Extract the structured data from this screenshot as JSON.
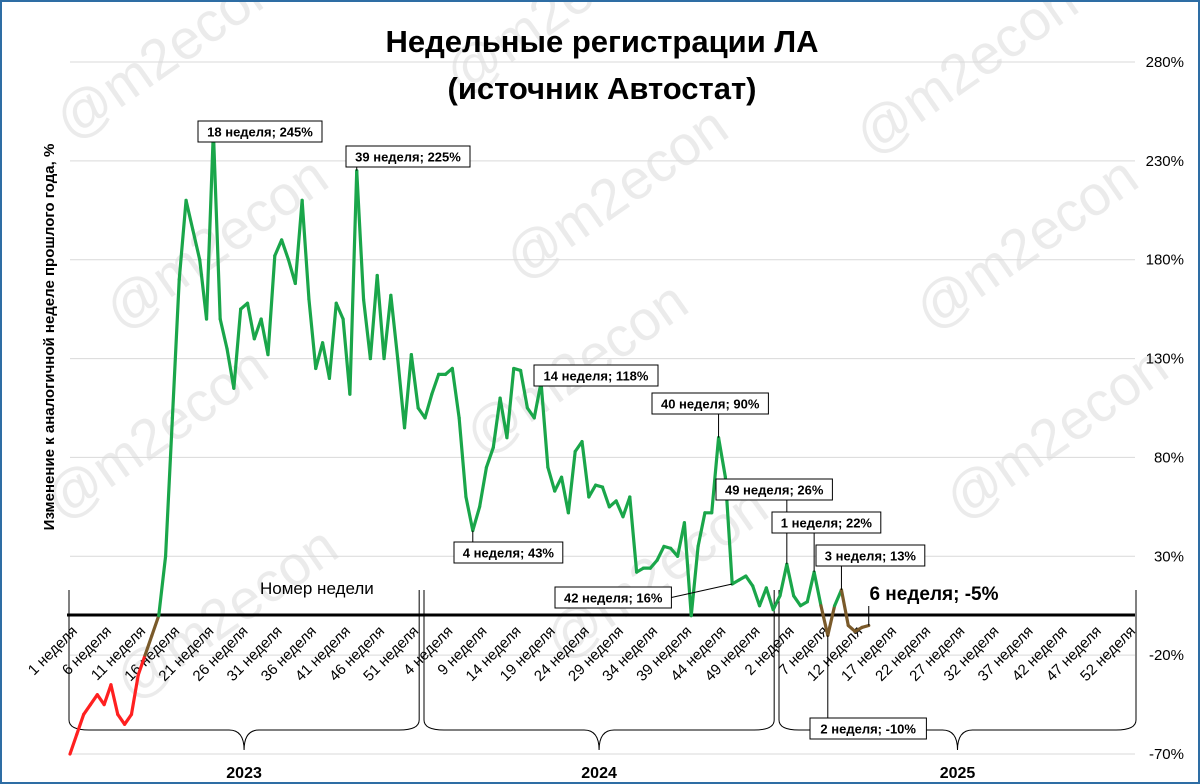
{
  "chart_data": {
    "type": "line",
    "title": [
      "Недельные регистрации ЛА",
      "(источник Автостат)"
    ],
    "ylabel": "Изменение к аналогичной  неделе прошлого года, %",
    "xlabel": "Номер недели",
    "ylim": [
      -70,
      280
    ],
    "yticks": [
      "280%",
      "230%",
      "180%",
      "130%",
      "80%",
      "30%",
      "-20%",
      "-70%"
    ],
    "y_tick_values": [
      280,
      230,
      180,
      130,
      80,
      30,
      -20,
      -70
    ],
    "xtick_labels": [
      "1 неделя",
      "6 неделя",
      "11 неделя",
      "16 неделя",
      "21 неделя",
      "26 неделя",
      "31 неделя",
      "36 неделя",
      "41 неделя",
      "46 неделя",
      "51 неделя",
      "4 неделя",
      "9 неделя",
      "14 неделя",
      "19 неделя",
      "24 неделя",
      "29 неделя",
      "34 неделя",
      "39 неделя",
      "44 неделя",
      "49 неделя",
      "2 неделя",
      "7 неделя",
      "12 неделя",
      "17 неделя",
      "22 неделя",
      "27 неделя",
      "32 неделя",
      "37 неделя",
      "42 неделя",
      "47 неделя",
      "52 неделя"
    ],
    "xtick_week_index": [
      0,
      5,
      10,
      15,
      20,
      25,
      30,
      35,
      40,
      45,
      50,
      55,
      60,
      65,
      70,
      75,
      80,
      85,
      90,
      95,
      100,
      105,
      110,
      115,
      120,
      125,
      130,
      135,
      140,
      145,
      150,
      155
    ],
    "total_weeks": 157,
    "years": [
      {
        "label": "2023",
        "start": 0,
        "end": 51
      },
      {
        "label": "2024",
        "start": 52,
        "end": 103
      },
      {
        "label": "2025",
        "start": 104,
        "end": 156
      }
    ],
    "values": [
      -70,
      -60,
      -50,
      -45,
      -40,
      -45,
      -35,
      -50,
      -55,
      -50,
      -30,
      -20,
      -10,
      0,
      30,
      100,
      170,
      210,
      195,
      180,
      150,
      245,
      150,
      135,
      115,
      155,
      158,
      140,
      150,
      132,
      182,
      190,
      180,
      168,
      210,
      160,
      125,
      138,
      120,
      158,
      150,
      112,
      225,
      160,
      130,
      172,
      130,
      162,
      130,
      95,
      132,
      105,
      100,
      112,
      122,
      122,
      125,
      100,
      60,
      43,
      55,
      75,
      85,
      110,
      90,
      125,
      124,
      105,
      100,
      118,
      75,
      63,
      70,
      52,
      83,
      88,
      60,
      66,
      65,
      55,
      58,
      50,
      60,
      22,
      24,
      24,
      28,
      35,
      34,
      30,
      47,
      0,
      35,
      52,
      52,
      90,
      70,
      16,
      18,
      20,
      15,
      5,
      14,
      3,
      10,
      26,
      10,
      5,
      7,
      22,
      5,
      -10,
      5,
      13,
      -5,
      -8,
      -6,
      -5
    ],
    "series_colors": {
      "pos": "#1aa64a",
      "neg": "#ff2020",
      "mid": "#7a5a2a"
    },
    "annotations": [
      {
        "text": "18 неделя; 245%",
        "week": 21,
        "value": 245
      },
      {
        "text": "39 неделя; 225%",
        "week": 42,
        "value": 225
      },
      {
        "text": "4 неделя; 43%",
        "week": 59,
        "value": 43
      },
      {
        "text": "14 неделя; 118%",
        "week": 69,
        "value": 118
      },
      {
        "text": "42 неделя; 16%",
        "week": 97,
        "value": 16
      },
      {
        "text": "40 неделя; 90%",
        "week": 95,
        "value": 90
      },
      {
        "text": "49 неделя; 26%",
        "week": 105,
        "value": 26
      },
      {
        "text": "1 неделя; 22%",
        "week": 109,
        "value": 22
      },
      {
        "text": "2 неделя; -10%",
        "week": 111,
        "value": -10
      },
      {
        "text": "3 неделя; 13%",
        "week": 113,
        "value": 13
      },
      {
        "text": "6 неделя; -5%",
        "week": 117,
        "value": -5
      }
    ],
    "watermark": "@m2econ"
  }
}
